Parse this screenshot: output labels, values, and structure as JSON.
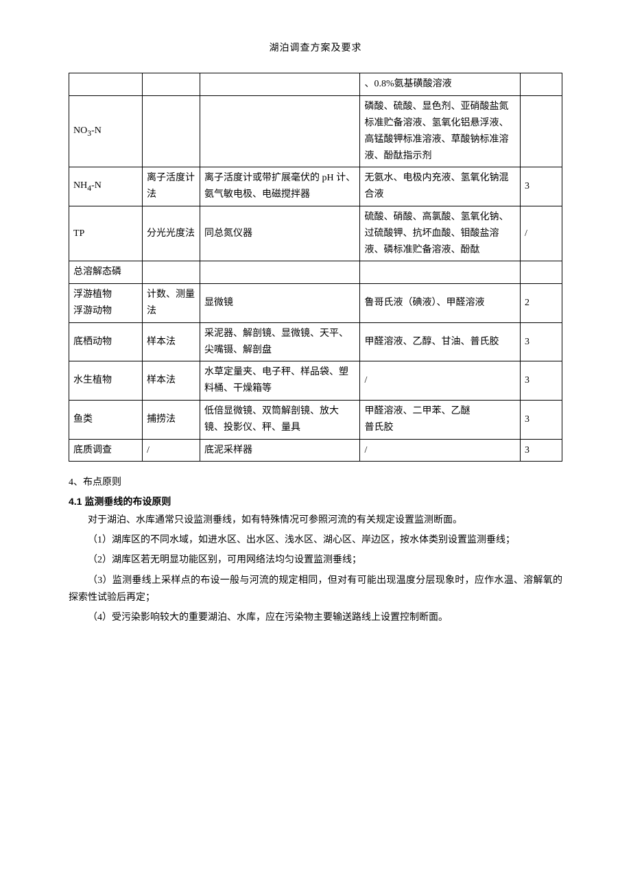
{
  "doc_title": "湖泊调查方案及要求",
  "table": {
    "col_widths": [
      "80px",
      "60px",
      "190px",
      "190px",
      "40px"
    ],
    "rows": [
      {
        "c0": "",
        "c1": "",
        "c2": "",
        "c3": "、0.8%氨基磺酸溶液",
        "c4": ""
      },
      {
        "c0_html": "NO<sub>3</sub>-N",
        "c1": "",
        "c2": "",
        "c3": "磷酸、硫酸、显色剂、亚硝酸盐氮标准贮备溶液、氢氧化铝悬浮液、高锰酸钾标准溶液、草酸钠标准溶液、酚酞指示剂",
        "c4": ""
      },
      {
        "c0_html": "NH<sub>4</sub>-N",
        "c1": "离子活度计法",
        "c2": "离子活度计或带扩展毫伏的 pH 计、氨气敏电极、电磁搅拌器",
        "c3": "无氨水、电极内充液、氢氧化钠混合液",
        "c4": "3"
      },
      {
        "c0": "TP",
        "c1": "分光光度法",
        "c2": "同总氮仪器",
        "c3": "硫酸、硝酸、高氯酸、氢氧化钠、过硫酸钾、抗坏血酸、钼酸盐溶液、磷标准贮备溶液、酚酞",
        "c4": "/"
      },
      {
        "c0": "总溶解态磷",
        "c1": "",
        "c2": "",
        "c3": "",
        "c4": ""
      },
      {
        "c0": "浮游植物\n浮游动物",
        "c1": "计数、测量法",
        "c2": "显微镜",
        "c3": "鲁哥氏液（碘液）、甲醛溶液",
        "c4": "2"
      },
      {
        "c0": "底栖动物",
        "c1": "样本法",
        "c2": "采泥器、解剖镜、显微镜、天平、尖嘴镊、解剖盘",
        "c3": "甲醛溶液、乙醇、甘油、普氏胶",
        "c4": "3"
      },
      {
        "c0": "水生植物",
        "c1": "样本法",
        "c2": "水草定量夹、电子秤、样品袋、塑料桶、干燥箱等",
        "c3": "/",
        "c4": "3"
      },
      {
        "c0": "鱼类",
        "c1": "捕捞法",
        "c2": "低倍显微镜、双筒解剖镜、放大镜、投影仪、秤、量具",
        "c3": "甲醛溶液、二甲苯、乙醚\n普氏胶",
        "c4": "3"
      },
      {
        "c0": "底质调查",
        "c1": "/",
        "c2": "底泥采样器",
        "c3": "/",
        "c4": "3"
      }
    ]
  },
  "section4_num": "4、布点原则",
  "section41_head": "4.1 监测垂线的布设原则",
  "p1": "对于湖泊、水库通常只设监测垂线，如有特殊情况可参照河流的有关规定设置监测断面。",
  "p2": "（1）湖库区的不同水域，如进水区、出水区、浅水区、湖心区、岸边区，按水体类别设置监测垂线；",
  "p3": "（2）湖库区若无明显功能区别，可用网络法均匀设置监测垂线；",
  "p4": "（3）监测垂线上采样点的布设一般与河流的规定相同，但对有可能出现温度分层现象时，应作水温、溶解氧的探索性试验后再定；",
  "p5": "（4）受污染影响较大的重要湖泊、水库，应在污染物主要输送路线上设置控制断面。"
}
